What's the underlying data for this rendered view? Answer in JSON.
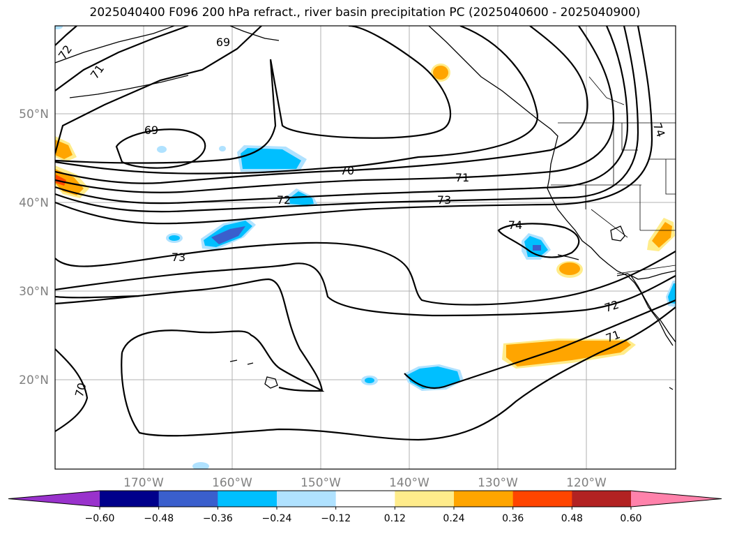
{
  "title": "2025040400 F096 200 hPa refract., river basin precipitation PC (2025040600 - 2025040900)",
  "map": {
    "lat_labels": [
      "20°N",
      "30°N",
      "40°N",
      "50°N"
    ],
    "lon_labels": [
      "170°W",
      "160°W",
      "150°W",
      "140°W",
      "130°W",
      "120°W"
    ],
    "grid": true,
    "contour_labels": [
      "69",
      "69",
      "70",
      "70",
      "71",
      "71",
      "72",
      "72",
      "72",
      "73",
      "73",
      "74",
      "74",
      "71"
    ]
  },
  "colorbar": {
    "extend": "both",
    "colors": [
      "#9932cc",
      "#00008b",
      "#3a5fcd",
      "#00bfff",
      "#b0e2ff",
      "#ffffff",
      "#ffec8b",
      "#ffa500",
      "#ff4500",
      "#b22222",
      "#ff82ab"
    ],
    "tick_labels": [
      "−0.60",
      "−0.48",
      "−0.36",
      "−0.24",
      "−0.12",
      "0.12",
      "0.24",
      "0.36",
      "0.48",
      "0.60"
    ]
  }
}
